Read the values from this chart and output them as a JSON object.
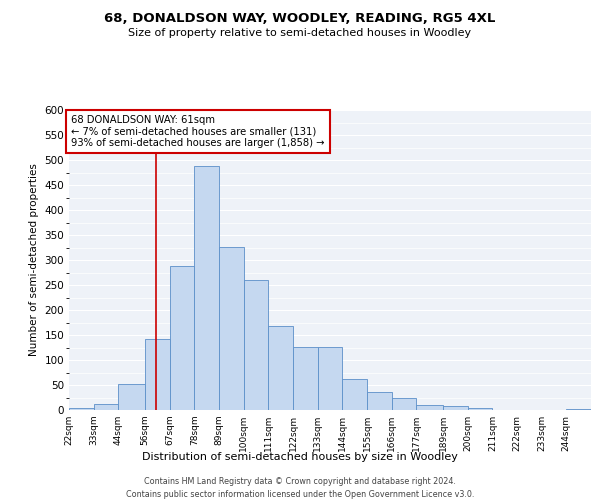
{
  "title": "68, DONALDSON WAY, WOODLEY, READING, RG5 4XL",
  "subtitle": "Size of property relative to semi-detached houses in Woodley",
  "xlabel": "Distribution of semi-detached houses by size in Woodley",
  "ylabel": "Number of semi-detached properties",
  "bin_labels": [
    "22sqm",
    "33sqm",
    "44sqm",
    "56sqm",
    "67sqm",
    "78sqm",
    "89sqm",
    "100sqm",
    "111sqm",
    "122sqm",
    "133sqm",
    "144sqm",
    "155sqm",
    "166sqm",
    "177sqm",
    "189sqm",
    "200sqm",
    "211sqm",
    "222sqm",
    "233sqm",
    "244sqm"
  ],
  "bin_edges": [
    22,
    33,
    44,
    56,
    67,
    78,
    89,
    100,
    111,
    122,
    133,
    144,
    155,
    166,
    177,
    189,
    200,
    211,
    222,
    233,
    244
  ],
  "bar_heights": [
    5,
    13,
    53,
    143,
    288,
    488,
    327,
    261,
    168,
    126,
    126,
    63,
    36,
    25,
    10,
    9,
    5,
    1,
    1,
    0,
    3
  ],
  "bar_color": "#c5d8f0",
  "bar_edge_color": "#5b8fc9",
  "property_line_x": 61,
  "annotation_text_line1": "68 DONALDSON WAY: 61sqm",
  "annotation_text_line2": "← 7% of semi-detached houses are smaller (131)",
  "annotation_text_line3": "93% of semi-detached houses are larger (1,858) →",
  "vline_color": "#cc0000",
  "annotation_box_color": "#cc0000",
  "ylim": [
    0,
    600
  ],
  "yticks": [
    0,
    50,
    100,
    150,
    200,
    250,
    300,
    350,
    400,
    450,
    500,
    550,
    600
  ],
  "bg_color": "#eef2f8",
  "grid_color": "#ffffff",
  "footer_line1": "Contains HM Land Registry data © Crown copyright and database right 2024.",
  "footer_line2": "Contains public sector information licensed under the Open Government Licence v3.0."
}
